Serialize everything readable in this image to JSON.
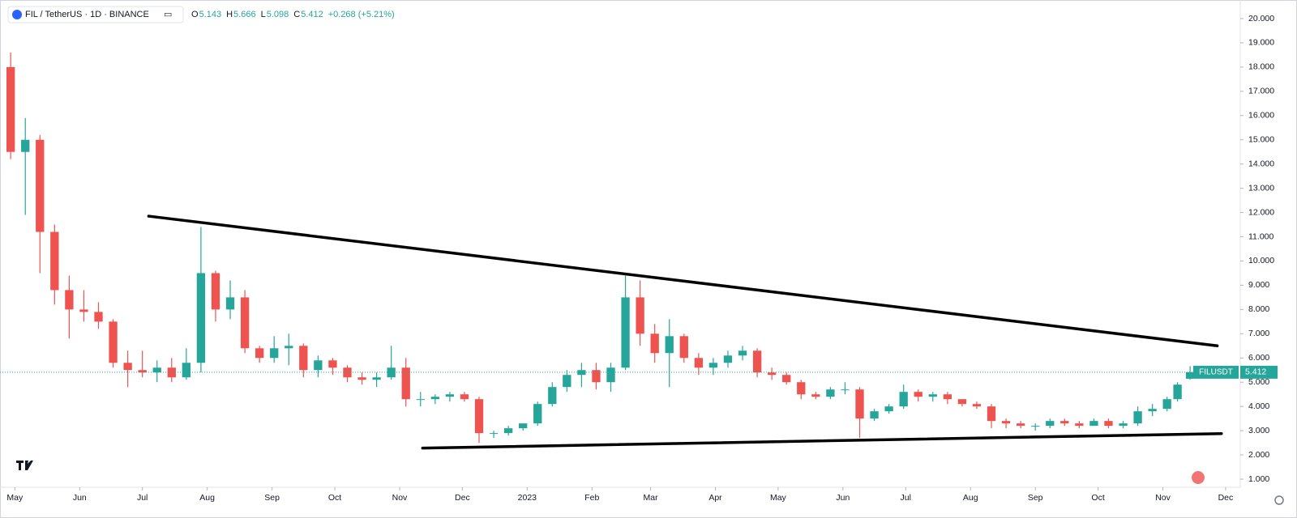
{
  "chart_data": {
    "type": "candlestick",
    "symbol": "FIL / TetherUS · 1D · BINANCE",
    "ohlc_labels": [
      "O",
      "H",
      "L",
      "C"
    ],
    "change": "+0.268 (+5.21%)",
    "price_tag": "FILUSDT",
    "up_color": "#26a69a",
    "down_color": "#ef5350",
    "x": [
      -2,
      5,
      12,
      19,
      26,
      33,
      40,
      47,
      54,
      61,
      68,
      75,
      82,
      89,
      96,
      103,
      110,
      117,
      124,
      131,
      138,
      145,
      152,
      159,
      166,
      173,
      180,
      187,
      194,
      201,
      208,
      215,
      222,
      229,
      236,
      243,
      250,
      257,
      264,
      271,
      278,
      285,
      292,
      299,
      306,
      313,
      320,
      327,
      334,
      341,
      348,
      355,
      362,
      369,
      376,
      383,
      390,
      397,
      404,
      411,
      418,
      425,
      432,
      439,
      446,
      453,
      460,
      467,
      474,
      481,
      488,
      495,
      502,
      509,
      516,
      523,
      530,
      537,
      544,
      551,
      556,
      562
    ],
    "open": [
      18.0,
      14.5,
      15.0,
      11.2,
      8.8,
      8.0,
      7.9,
      7.5,
      5.8,
      5.5,
      5.4,
      5.6,
      5.2,
      5.8,
      9.5,
      8.0,
      8.5,
      6.4,
      6.0,
      6.4,
      6.5,
      5.5,
      5.9,
      5.6,
      5.2,
      5.1,
      5.2,
      5.6,
      4.3,
      4.3,
      4.4,
      4.5,
      4.3,
      2.9,
      2.9,
      3.1,
      3.3,
      4.1,
      4.8,
      5.3,
      5.5,
      5.0,
      5.6,
      8.5,
      7.0,
      6.2,
      6.9,
      6.0,
      5.6,
      5.8,
      6.1,
      6.3,
      5.4,
      5.3,
      5.0,
      4.5,
      4.4,
      4.7,
      4.7,
      3.5,
      3.8,
      4.0,
      4.6,
      4.4,
      4.5,
      4.3,
      4.1,
      4.0,
      3.4,
      3.3,
      3.2,
      3.2,
      3.4,
      3.3,
      3.2,
      3.4,
      3.2,
      3.3,
      3.8,
      3.9,
      4.3,
      5.143
    ],
    "high": [
      18.6,
      15.9,
      15.2,
      11.5,
      9.4,
      8.8,
      8.3,
      7.6,
      6.3,
      6.3,
      5.9,
      6.0,
      6.4,
      11.4,
      9.6,
      9.2,
      8.8,
      6.5,
      6.9,
      7.0,
      6.6,
      6.1,
      6.0,
      5.7,
      5.4,
      5.4,
      6.5,
      6.0,
      4.6,
      4.5,
      4.6,
      4.6,
      4.4,
      3.0,
      3.2,
      3.3,
      4.2,
      5.0,
      5.5,
      5.8,
      5.8,
      5.8,
      9.4,
      9.2,
      7.4,
      7.6,
      7.0,
      6.2,
      6.0,
      6.3,
      6.5,
      6.4,
      5.6,
      5.4,
      5.1,
      4.6,
      4.8,
      5.0,
      4.8,
      3.9,
      4.1,
      4.9,
      4.7,
      4.6,
      4.6,
      4.3,
      4.2,
      4.1,
      3.5,
      3.4,
      3.3,
      3.5,
      3.5,
      3.4,
      3.5,
      3.5,
      3.4,
      4.0,
      4.1,
      4.4,
      5.0,
      5.666
    ],
    "low": [
      14.2,
      11.9,
      9.5,
      8.2,
      6.8,
      7.5,
      7.2,
      5.6,
      4.8,
      5.2,
      5.0,
      5.0,
      5.1,
      5.4,
      7.5,
      7.6,
      6.2,
      5.8,
      5.8,
      5.7,
      5.2,
      5.2,
      5.3,
      5.0,
      4.9,
      4.8,
      5.1,
      4.0,
      4.0,
      4.1,
      4.2,
      4.2,
      2.5,
      2.7,
      2.8,
      3.0,
      3.2,
      4.0,
      4.6,
      4.8,
      4.7,
      4.6,
      5.5,
      6.5,
      5.8,
      4.8,
      5.8,
      5.3,
      5.3,
      5.6,
      5.9,
      5.2,
      5.1,
      4.9,
      4.3,
      4.3,
      4.3,
      4.5,
      2.7,
      3.4,
      3.7,
      3.9,
      4.2,
      4.2,
      4.1,
      4.0,
      3.9,
      3.1,
      3.1,
      3.1,
      3.0,
      3.1,
      3.2,
      3.1,
      3.2,
      3.1,
      3.1,
      3.2,
      3.6,
      3.8,
      4.2,
      5.098
    ],
    "close": [
      14.5,
      15.0,
      11.2,
      8.8,
      8.0,
      7.9,
      7.5,
      5.8,
      5.5,
      5.4,
      5.6,
      5.2,
      5.8,
      9.5,
      8.0,
      8.5,
      6.4,
      6.0,
      6.4,
      6.5,
      5.5,
      5.9,
      5.6,
      5.2,
      5.1,
      5.2,
      5.6,
      4.3,
      4.3,
      4.4,
      4.5,
      4.3,
      2.9,
      2.9,
      3.1,
      3.3,
      4.1,
      4.8,
      5.3,
      5.5,
      5.0,
      5.6,
      8.5,
      7.0,
      6.2,
      6.9,
      6.0,
      5.6,
      5.8,
      6.1,
      6.3,
      5.4,
      5.3,
      5.0,
      4.5,
      4.4,
      4.7,
      4.7,
      3.5,
      3.8,
      4.0,
      4.6,
      4.4,
      4.5,
      4.3,
      4.1,
      4.0,
      3.4,
      3.3,
      3.2,
      3.2,
      3.4,
      3.3,
      3.2,
      3.4,
      3.2,
      3.3,
      3.8,
      3.9,
      4.3,
      4.9,
      5.412
    ],
    "xlim": [
      -4,
      586
    ],
    "xticks": [
      {
        "value": 0,
        "label": "May"
      },
      {
        "value": 31,
        "label": "Jun"
      },
      {
        "value": 61,
        "label": "Jul"
      },
      {
        "value": 92,
        "label": "Aug"
      },
      {
        "value": 123,
        "label": "Sep"
      },
      {
        "value": 153,
        "label": "Oct"
      },
      {
        "value": 184,
        "label": "Nov"
      },
      {
        "value": 214,
        "label": "Dec"
      },
      {
        "value": 245,
        "label": "2023"
      },
      {
        "value": 276,
        "label": "Feb"
      },
      {
        "value": 304,
        "label": "Mar"
      },
      {
        "value": 335,
        "label": "Apr"
      },
      {
        "value": 365,
        "label": "May"
      },
      {
        "value": 396,
        "label": "Jun"
      },
      {
        "value": 426,
        "label": "Jul"
      },
      {
        "value": 457,
        "label": "Aug"
      },
      {
        "value": 488,
        "label": "Sep"
      },
      {
        "value": 518,
        "label": "Oct"
      },
      {
        "value": 549,
        "label": "Nov"
      },
      {
        "value": 579,
        "label": "Dec"
      }
    ],
    "ylim": [
      0.8,
      20.5
    ],
    "yticks": [
      {
        "value": 1,
        "label": "1.000"
      },
      {
        "value": 2,
        "label": "2.000"
      },
      {
        "value": 3,
        "label": "3.000"
      },
      {
        "value": 4,
        "label": "4.000"
      },
      {
        "value": 5,
        "label": "5.000"
      },
      {
        "value": 6,
        "label": "6.000"
      },
      {
        "value": 7,
        "label": "7.000"
      },
      {
        "value": 8,
        "label": "8.000"
      },
      {
        "value": 9,
        "label": "9.000"
      },
      {
        "value": 10,
        "label": "10.000"
      },
      {
        "value": 11,
        "label": "11.000"
      },
      {
        "value": 12,
        "label": "12.000"
      },
      {
        "value": 13,
        "label": "13.000"
      },
      {
        "value": 14,
        "label": "14.000"
      },
      {
        "value": 15,
        "label": "15.000"
      },
      {
        "value": 16,
        "label": "16.000"
      },
      {
        "value": 17,
        "label": "17.000"
      },
      {
        "value": 18,
        "label": "18.000"
      },
      {
        "value": 19,
        "label": "19.000"
      },
      {
        "value": 20,
        "label": "20.000"
      }
    ],
    "trend_lines": [
      {
        "x": [
          64,
          575
        ],
        "y": [
          11.85,
          6.5
        ]
      },
      {
        "x": [
          195,
          577
        ],
        "y": [
          2.28,
          2.88
        ]
      }
    ]
  }
}
